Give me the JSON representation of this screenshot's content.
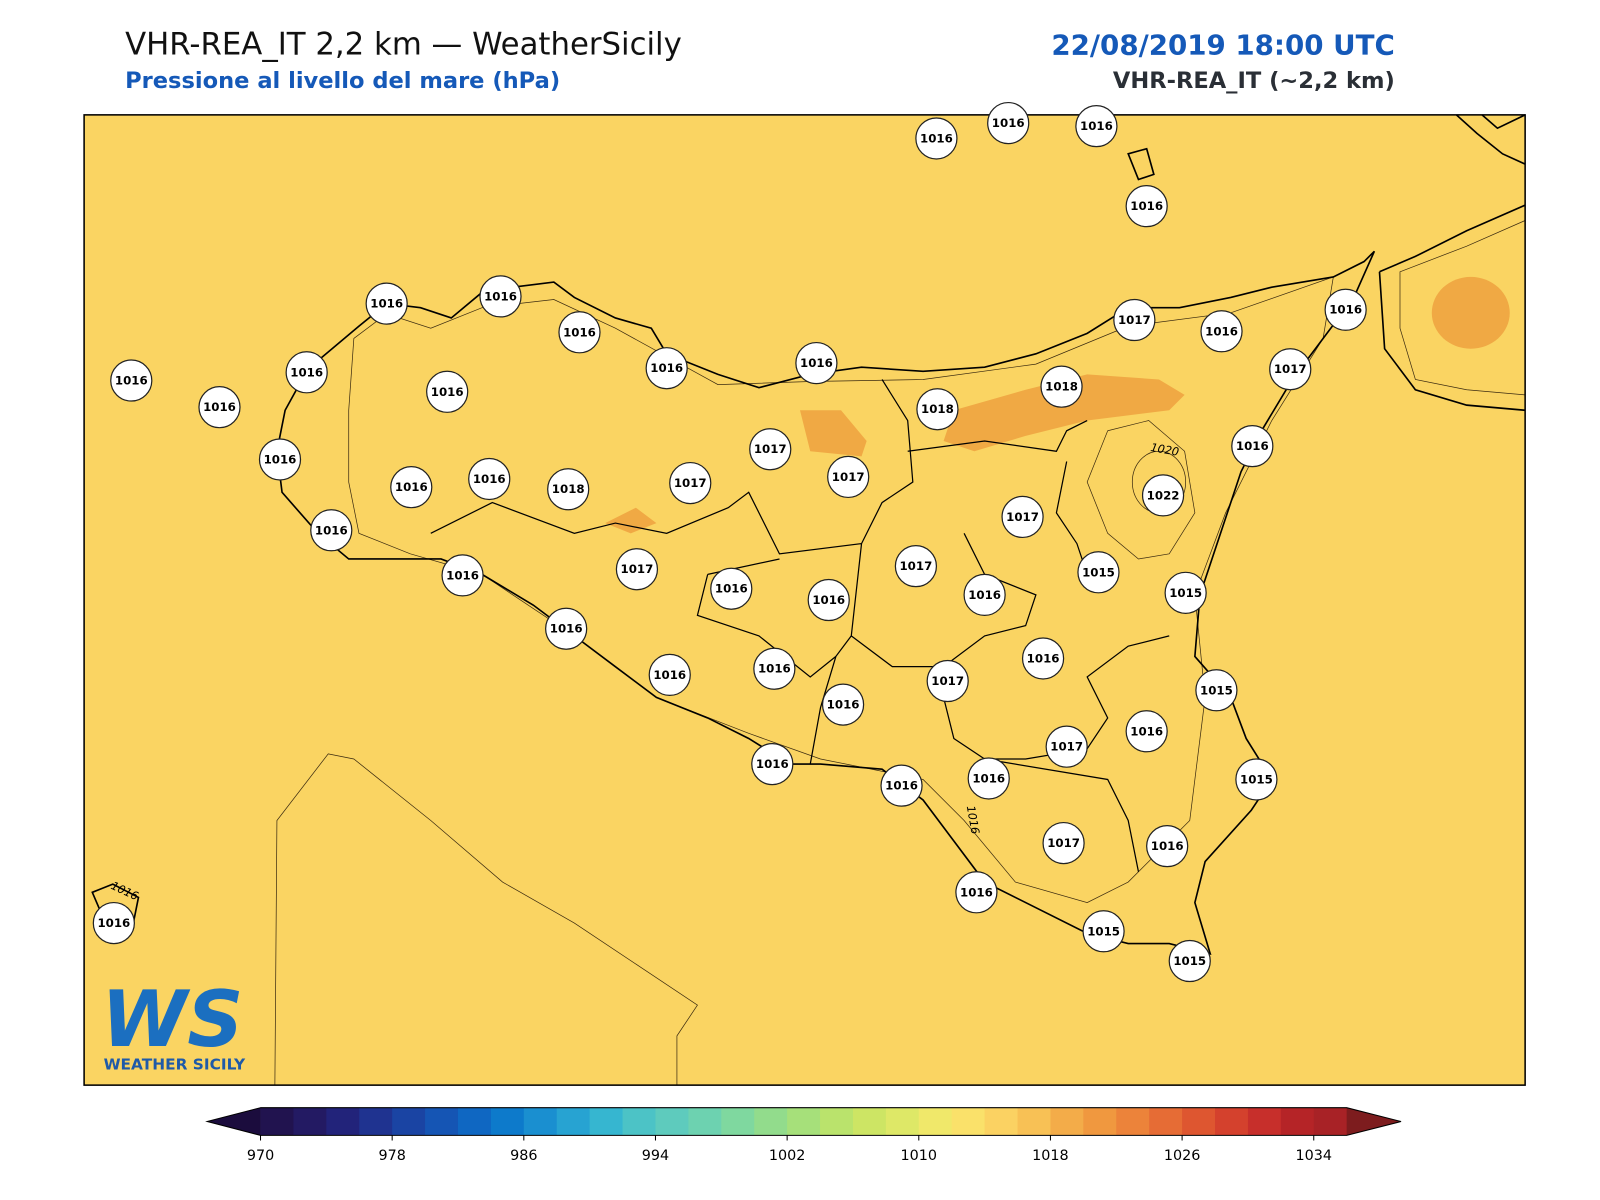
{
  "header": {
    "title": "VHR-REA_IT 2,2 km — WeatherSicily",
    "subtitle": "Pressione al livello del mare (hPa)",
    "datetime": "22/08/2019 18:00 UTC",
    "model": "VHR-REA_IT (~2,2 km)"
  },
  "stations": [
    1016,
    1016,
    1016,
    1016,
    1016,
    1016,
    1016,
    1016,
    1016,
    1016,
    1016,
    1016,
    1016,
    1017,
    1016,
    1016,
    1017,
    1018,
    1018,
    1017,
    1017,
    1016,
    1016,
    1016,
    1016,
    1018,
    1017,
    1022,
    1017,
    1016,
    1016,
    1017,
    1017,
    1015,
    1015,
    1016,
    1016,
    1016,
    1016,
    1016,
    1016,
    1016,
    1017,
    1015,
    1016,
    1017,
    1016,
    1016,
    1016,
    1016,
    1015,
    1017,
    1016,
    1016,
    1016,
    1015,
    1015
  ],
  "contour_labels": [
    1020,
    1016,
    1016
  ],
  "colorbar": {
    "lim": [
      970,
      1036
    ],
    "ticks": [
      970,
      978,
      986,
      994,
      1002,
      1010,
      1018,
      1026,
      1034
    ],
    "colors": [
      "#21134f",
      "#231a63",
      "#22237a",
      "#1f3390",
      "#1a44a3",
      "#1555b4",
      "#0f67c2",
      "#0d7acb",
      "#1a8fd0",
      "#27a3d2",
      "#36b6d0",
      "#4cc3c6",
      "#5ecbbd",
      "#6dd2b0",
      "#7fd89f",
      "#92dc8c",
      "#a6e07a",
      "#bae36c",
      "#cde564",
      "#dee867",
      "#f0e86a",
      "#fae16a",
      "#fbd262",
      "#f8c155",
      "#f3ac49",
      "#f0983f",
      "#ec833a",
      "#e66c35",
      "#de5630",
      "#d4412d",
      "#c72f2b",
      "#b52427",
      "#a82226"
    ],
    "under_color": "#1b0c3d",
    "over_color": "#7d1c1e"
  },
  "logo": {
    "mark": "WS",
    "text": "WEATHER SICILY"
  }
}
